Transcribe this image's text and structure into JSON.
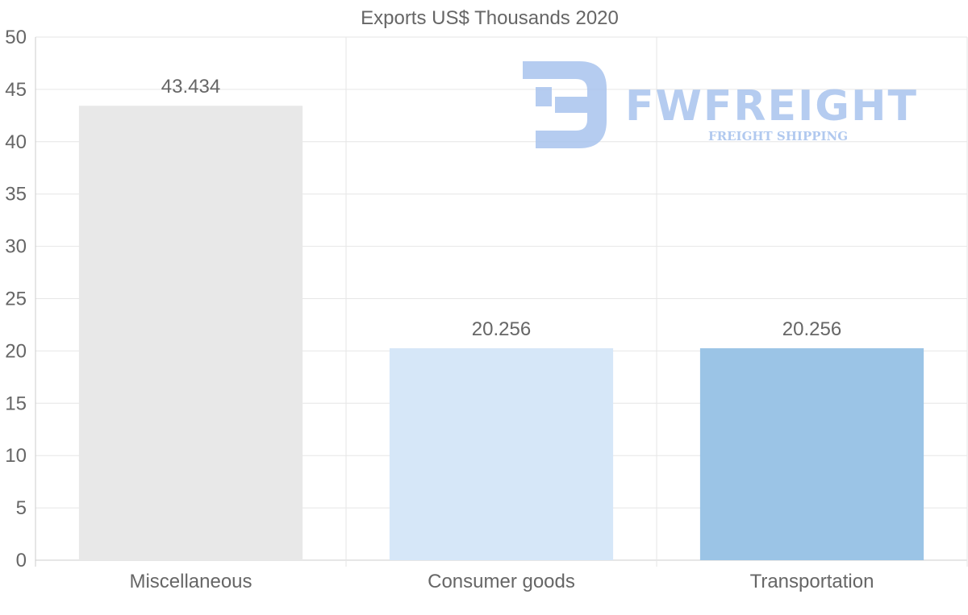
{
  "chart_data": {
    "type": "bar",
    "title": "Exports US$ Thousands 2020",
    "categories": [
      "Miscellaneous",
      "Consumer goods",
      "Transportation"
    ],
    "values": [
      43.434,
      20.256,
      20.256
    ],
    "data_labels": [
      "43.434",
      "20.256",
      "20.256"
    ],
    "colors": [
      "#e8e8e8",
      "#d6e7f8",
      "#9bc4e6"
    ],
    "ylim": [
      0,
      50
    ],
    "yticks": [
      0,
      5,
      10,
      15,
      20,
      25,
      30,
      35,
      40,
      45,
      50
    ],
    "xlabel": "",
    "ylabel": "",
    "grid": true,
    "legend": "none"
  },
  "watermark": {
    "brand": "FWFREIGHT",
    "tagline": "FREIGHT SHIPPING",
    "color": "#a9c4ee"
  }
}
